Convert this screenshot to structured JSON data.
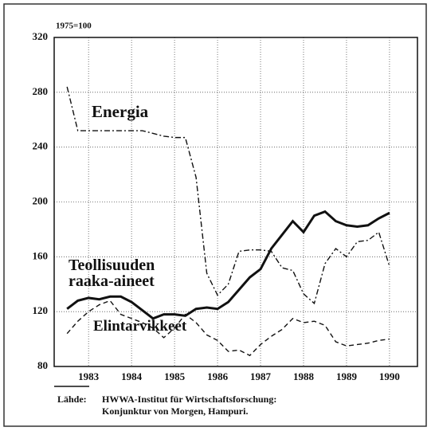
{
  "chart_data": {
    "type": "line",
    "unit_label": "1975=100",
    "x": [
      1983.0,
      1983.25,
      1983.5,
      1983.75,
      1984.0,
      1984.25,
      1984.5,
      1984.75,
      1985.0,
      1985.25,
      1985.5,
      1985.75,
      1986.0,
      1986.25,
      1986.5,
      1986.75,
      1987.0,
      1987.25,
      1987.5,
      1987.75,
      1988.0,
      1988.25,
      1988.5,
      1988.75,
      1989.0,
      1989.25,
      1989.5,
      1989.75,
      1990.0,
      1990.25,
      1990.5
    ],
    "series": [
      {
        "name": "Energia",
        "color": "#111111",
        "dash": "dashdot",
        "values": [
          284,
          252,
          252,
          252,
          252,
          252,
          252,
          252,
          250,
          248,
          247,
          247,
          218,
          148,
          132,
          140,
          164,
          165,
          165,
          164,
          152,
          150,
          133,
          126,
          155,
          166,
          160,
          171,
          172,
          178,
          153
        ]
      },
      {
        "name": "Teollisuuden raaka-aineet",
        "color": "#111111",
        "dash": "solid",
        "values": [
          122,
          128,
          130,
          129,
          131,
          131,
          127,
          121,
          115,
          118,
          118,
          117,
          122,
          123,
          122,
          127,
          136,
          145,
          151,
          166,
          176,
          186,
          178,
          190,
          193,
          186,
          183,
          182,
          183,
          188,
          192
        ]
      },
      {
        "name": "Elintarvikkeet",
        "color": "#111111",
        "dash": "dashed",
        "values": [
          104,
          113,
          120,
          125,
          128,
          118,
          115,
          112,
          108,
          101,
          108,
          118,
          112,
          103,
          99,
          91,
          92,
          88,
          96,
          102,
          107,
          115,
          112,
          113,
          110,
          98,
          95,
          96,
          97,
          99,
          100
        ]
      }
    ],
    "xlim": [
      1982.7,
      1991.15
    ],
    "xticks": [
      {
        "value": 1983.5,
        "label": "1983"
      },
      {
        "value": 1984.5,
        "label": "1984"
      },
      {
        "value": 1985.5,
        "label": "1985"
      },
      {
        "value": 1986.5,
        "label": "1986"
      },
      {
        "value": 1987.5,
        "label": "1987"
      },
      {
        "value": 1988.5,
        "label": "1988"
      },
      {
        "value": 1989.5,
        "label": "1989"
      },
      {
        "value": 1990.5,
        "label": "1990"
      }
    ],
    "ylim": [
      80,
      320
    ],
    "yticks": [
      80,
      120,
      160,
      200,
      240,
      280,
      320
    ],
    "grid": true,
    "source_label": "Lähde:",
    "source_lines": [
      "HWWA-Institut für Wirtschaftsforschung:",
      "Konjunktur von Morgen, Hampuri."
    ]
  }
}
